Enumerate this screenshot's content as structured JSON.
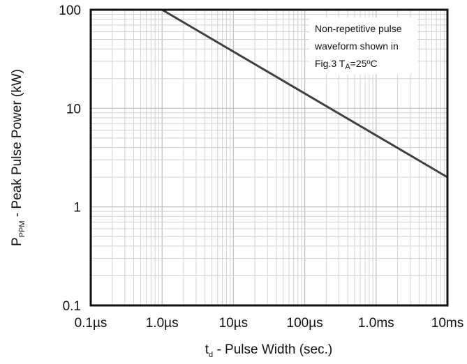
{
  "chart_data": {
    "type": "line",
    "x_scale": "log",
    "y_scale": "log",
    "xlim": [
      "0.1µs",
      "10ms"
    ],
    "ylim": [
      0.1,
      100
    ],
    "x_tick_labels": [
      "0.1µs",
      "1.0µs",
      "10µs",
      "100µs",
      "1.0ms",
      "10ms"
    ],
    "y_tick_labels": [
      "0.1",
      "1",
      "10",
      "100"
    ],
    "grid": true,
    "series": [
      {
        "color": "#404040",
        "points": [
          {
            "x": "1.0µs",
            "y": 100
          },
          {
            "x": "10ms",
            "y": 2
          }
        ]
      }
    ],
    "ylabel": {
      "main": "P",
      "sub": "PPM",
      "rest": " - Peak Pulse Power (kW)"
    },
    "xlabel": {
      "main": "t",
      "sub": "d",
      "rest": " - Pulse Width (sec.)"
    },
    "annotation": {
      "line1": "Non-repetitive pulse",
      "line2": "waveform shown in",
      "line3_pre": "Fig.3 T",
      "line3_sub": "A",
      "line3_post": "=25ºC"
    }
  }
}
